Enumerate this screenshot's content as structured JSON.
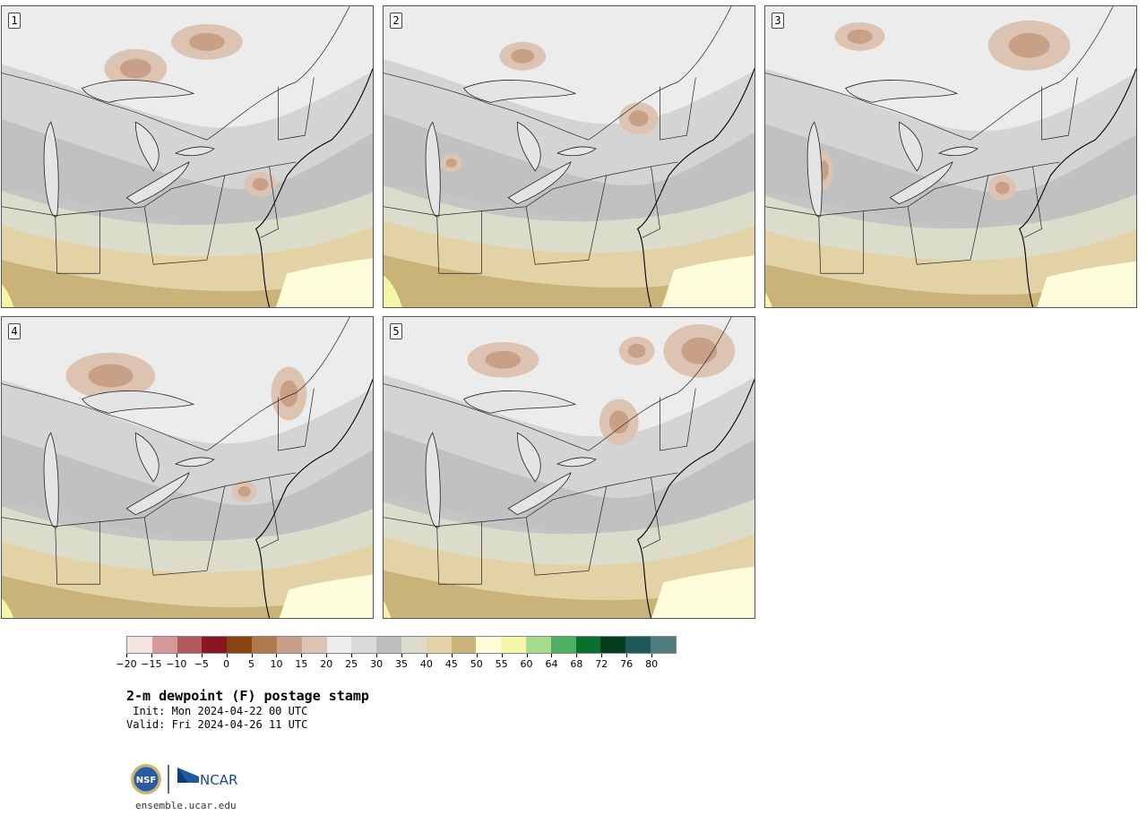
{
  "panels": [
    {
      "label": "1"
    },
    {
      "label": "2"
    },
    {
      "label": "3"
    },
    {
      "label": "4"
    },
    {
      "label": "5"
    }
  ],
  "colorbar": {
    "colors": [
      "#f3e3e3",
      "#d49a9a",
      "#b05a5a",
      "#8c1620",
      "#8a4412",
      "#b07850",
      "#c8a088",
      "#dcc3b2",
      "#ececec",
      "#d9d9d9",
      "#bdbdbd",
      "#dcdccb",
      "#e2d2a6",
      "#c9b378",
      "#fdfddc",
      "#f3f6a6",
      "#a6dc8a",
      "#4cb060",
      "#087030",
      "#043c22",
      "#1e5858",
      "#507c80"
    ],
    "tick_labels": [
      "−20",
      "−15",
      "−10",
      "−5",
      "0",
      "5",
      "10",
      "15",
      "20",
      "25",
      "30",
      "35",
      "40",
      "45",
      "50",
      "55",
      "60",
      "64",
      "68",
      "72",
      "76",
      "80"
    ]
  },
  "title": "2-m dewpoint (F) postage stamp",
  "init": " Init: Mon 2024-04-22 00 UTC",
  "valid": "Valid: Fri 2024-04-26 11 UTC",
  "logos": {
    "nsf": "NSF",
    "ncar": "NCAR"
  },
  "footer": "ensemble.ucar.edu"
}
